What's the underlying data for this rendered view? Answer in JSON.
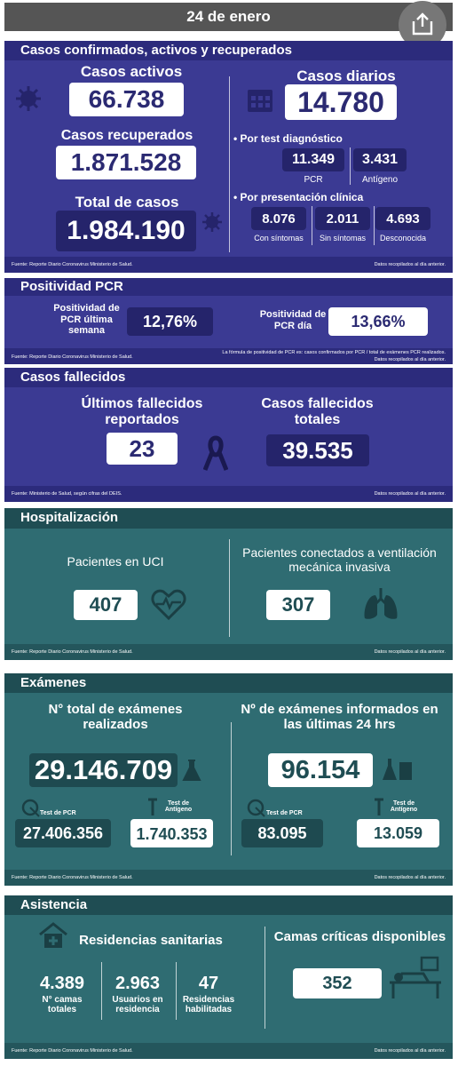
{
  "header": {
    "date": "24 de enero"
  },
  "casos": {
    "title": "Casos confirmados, activos y recuperados",
    "activos": {
      "label": "Casos activos",
      "value": "66.738"
    },
    "recuperados": {
      "label": "Casos recuperados",
      "value": "1.871.528"
    },
    "total": {
      "label": "Total de casos",
      "value": "1.984.190"
    },
    "diarios": {
      "label": "Casos diarios",
      "value": "14.780"
    },
    "por_test": {
      "label": "• Por test diagnóstico",
      "items": [
        {
          "value": "11.349",
          "label": "PCR"
        },
        {
          "value": "3.431",
          "label": "Antígeno"
        }
      ]
    },
    "por_clinica": {
      "label": "• Por presentación clínica",
      "items": [
        {
          "value": "8.076",
          "label": "Con síntomas"
        },
        {
          "value": "2.011",
          "label": "Sin síntomas"
        },
        {
          "value": "4.693",
          "label": "Desconocida"
        }
      ]
    },
    "source": "Fuente: Reporte Diario Coronavirus Ministerio de Salud.",
    "note": "Datos recopilados al día anterior."
  },
  "positividad": {
    "title": "Positividad PCR",
    "semana": {
      "label": "Positividad de PCR última semana",
      "value": "12,76%"
    },
    "dia": {
      "label": "Positividad de PCR día",
      "value": "13,66%"
    },
    "source": "Fuente: Reporte Diario Coronavirus Ministerio de Salud.",
    "formula": "La fórmula de positividad de PCR es: casos confirmados por PCR / total de exámenes PCR realizados.",
    "note": "Datos recopilados al día anterior."
  },
  "fallecidos": {
    "title": "Casos fallecidos",
    "ultimos": {
      "label": "Últimos fallecidos reportados",
      "value": "23"
    },
    "totales": {
      "label": "Casos fallecidos totales",
      "value": "39.535"
    },
    "source": "Fuente: Ministerio de Salud, según cifras del DEIS.",
    "note": "Datos recopilados al día anterior."
  },
  "hospitalizacion": {
    "title": "Hospitalización",
    "uci": {
      "label": "Pacientes en UCI",
      "value": "407"
    },
    "ventilacion": {
      "label": "Pacientes conectados a ventilación mecánica invasiva",
      "value": "307"
    },
    "source": "Fuente: Reporte Diario Coronavirus Ministerio de Salud.",
    "note": "Datos recopilados al día anterior."
  },
  "examenes": {
    "title": "Exámenes",
    "total": {
      "label": "N° total de exámenes realizados",
      "value": "29.146.709",
      "pcr": {
        "label": "Test de PCR",
        "value": "27.406.356"
      },
      "antigeno": {
        "label": "Test de Antígeno",
        "value": "1.740.353"
      }
    },
    "ultimas": {
      "label": "Nº de exámenes informados en las últimas 24 hrs",
      "value": "96.154",
      "pcr": {
        "label": "Test de PCR",
        "value": "83.095"
      },
      "antigeno": {
        "label": "Test de Antígeno",
        "value": "13.059"
      }
    },
    "source": "Fuente: Reporte Diario Coronavirus Ministerio de Salud.",
    "note": "Datos recopilados al día anterior."
  },
  "asistencia": {
    "title": "Asistencia",
    "residencias": {
      "label": "Residencias sanitarias",
      "items": [
        {
          "value": "4.389",
          "label": "N° camas totales"
        },
        {
          "value": "2.963",
          "label": "Usuarios en residencia"
        },
        {
          "value": "47",
          "label": "Residencias habilitadas"
        }
      ]
    },
    "camas": {
      "label": "Camas críticas disponibles",
      "value": "352"
    },
    "source": "Fuente: Reporte Diario Coronavirus Ministerio de Salud.",
    "note": "Datos recopilados al día anterior."
  }
}
